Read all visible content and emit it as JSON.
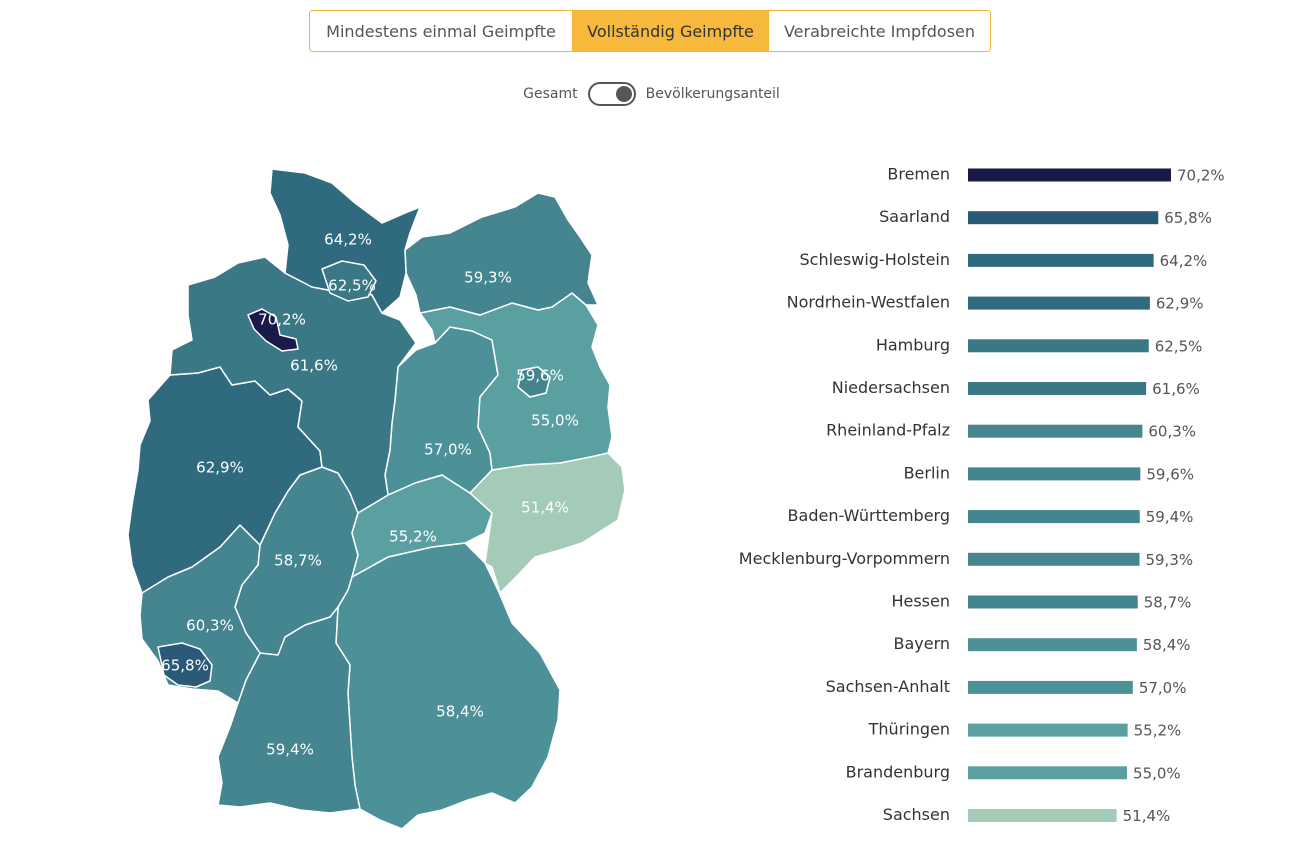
{
  "tabs": [
    {
      "label": "Mindestens einmal Geimpfte",
      "active": false
    },
    {
      "label": "Vollständig Geimpfte",
      "active": true
    },
    {
      "label": "Verabreichte Impfdosen",
      "active": false
    }
  ],
  "toggle": {
    "left_label": "Gesamt",
    "right_label": "Bevölkerungsanteil",
    "selected": "Bevölkerungsanteil"
  },
  "colors": {
    "tab_accent": "#f6b93b",
    "scale": [
      "#a4cbb7",
      "#7db3aa",
      "#5aa0a0",
      "#4c9198",
      "#44858f",
      "#3a7886",
      "#2f6a7e",
      "#2a5a77",
      "#1a1a4a"
    ]
  },
  "chart_data": [
    {
      "type": "map",
      "unit": "%",
      "regions": [
        {
          "name": "Schleswig-Holstein",
          "value": 64.2,
          "label": "64,2%"
        },
        {
          "name": "Hamburg",
          "value": 62.5,
          "label": "62,5%"
        },
        {
          "name": "Mecklenburg-Vorpommern",
          "value": 59.3,
          "label": "59,3%"
        },
        {
          "name": "Bremen",
          "value": 70.2,
          "label": "70,2%"
        },
        {
          "name": "Niedersachsen",
          "value": 61.6,
          "label": "61,6%"
        },
        {
          "name": "Berlin",
          "value": 59.6,
          "label": "59,6%"
        },
        {
          "name": "Brandenburg",
          "value": 55.0,
          "label": "55,0%"
        },
        {
          "name": "Sachsen-Anhalt",
          "value": 57.0,
          "label": "57,0%"
        },
        {
          "name": "Nordrhein-Westfalen",
          "value": 62.9,
          "label": "62,9%"
        },
        {
          "name": "Sachsen",
          "value": 51.4,
          "label": "51,4%"
        },
        {
          "name": "Thüringen",
          "value": 55.2,
          "label": "55,2%"
        },
        {
          "name": "Hessen",
          "value": 58.7,
          "label": "58,7%"
        },
        {
          "name": "Rheinland-Pfalz",
          "value": 60.3,
          "label": "60,3%"
        },
        {
          "name": "Saarland",
          "value": 65.8,
          "label": "65,8%"
        },
        {
          "name": "Bayern",
          "value": 58.4,
          "label": "58,4%"
        },
        {
          "name": "Baden-Württemberg",
          "value": 59.4,
          "label": "59,4%"
        }
      ]
    },
    {
      "type": "bar",
      "orientation": "horizontal",
      "unit": "%",
      "categories": [
        "Bremen",
        "Saarland",
        "Schleswig-Holstein",
        "Nordrhein-Westfalen",
        "Hamburg",
        "Niedersachsen",
        "Rheinland-Pfalz",
        "Berlin",
        "Baden-Württemberg",
        "Mecklenburg-Vorpommern",
        "Hessen",
        "Bayern",
        "Sachsen-Anhalt",
        "Thüringen",
        "Brandenburg",
        "Sachsen"
      ],
      "values": [
        70.2,
        65.8,
        64.2,
        62.9,
        62.5,
        61.6,
        60.3,
        59.6,
        59.4,
        59.3,
        58.7,
        58.4,
        57.0,
        55.2,
        55.0,
        51.4
      ],
      "value_labels": [
        "70,2%",
        "65,8%",
        "64,2%",
        "62,9%",
        "62,5%",
        "61,6%",
        "60,3%",
        "59,6%",
        "59,4%",
        "59,3%",
        "58,7%",
        "58,4%",
        "57,0%",
        "55,2%",
        "55,0%",
        "51,4%"
      ],
      "xlim": [
        0,
        70.2
      ]
    }
  ]
}
